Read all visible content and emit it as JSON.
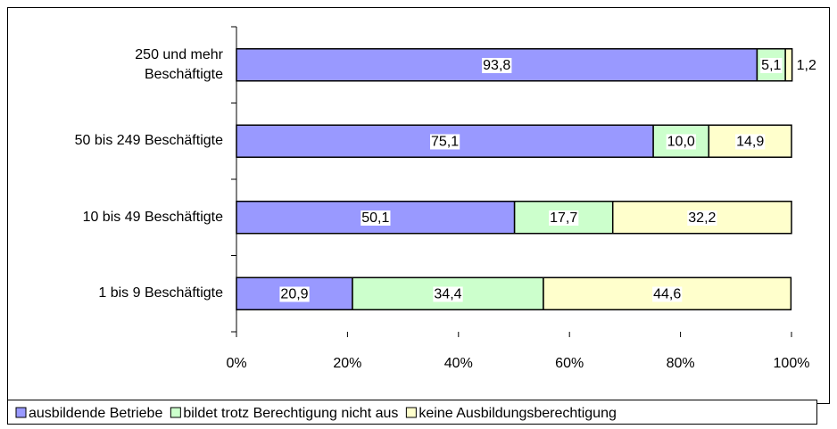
{
  "chart_data": {
    "type": "stacked-bar-horizontal",
    "categories": [
      "250 und mehr\nBeschäftigte",
      "50 bis 249 Beschäftigte",
      "10 bis 49 Beschäftigte",
      "1 bis 9 Beschäftigte"
    ],
    "series": [
      {
        "name": "ausbildende Betriebe",
        "color": "#9999ff",
        "values": [
          93.8,
          75.1,
          50.1,
          20.9
        ],
        "value_labels": [
          "93,8",
          "75,1",
          "50,1",
          "20,9"
        ]
      },
      {
        "name": "bildet trotz Berechtigung nicht aus",
        "color": "#ccffcc",
        "values": [
          5.1,
          10.0,
          17.7,
          34.4
        ],
        "value_labels": [
          "5,1",
          "10,0",
          "17,7",
          "34,4"
        ]
      },
      {
        "name": "keine Ausbildungsberechtigung",
        "color": "#ffffcc",
        "values": [
          1.2,
          14.9,
          32.2,
          44.6
        ],
        "value_labels": [
          "1,2",
          "14,9",
          "32,2",
          "44,6"
        ]
      }
    ],
    "xlim": [
      0,
      100
    ],
    "xticks": [
      {
        "value": 0,
        "label": "0%"
      },
      {
        "value": 20,
        "label": "20%"
      },
      {
        "value": 40,
        "label": "40%"
      },
      {
        "value": 60,
        "label": "60%"
      },
      {
        "value": 80,
        "label": "80%"
      },
      {
        "value": 100,
        "label": "100%"
      }
    ],
    "legend": "bottom"
  }
}
